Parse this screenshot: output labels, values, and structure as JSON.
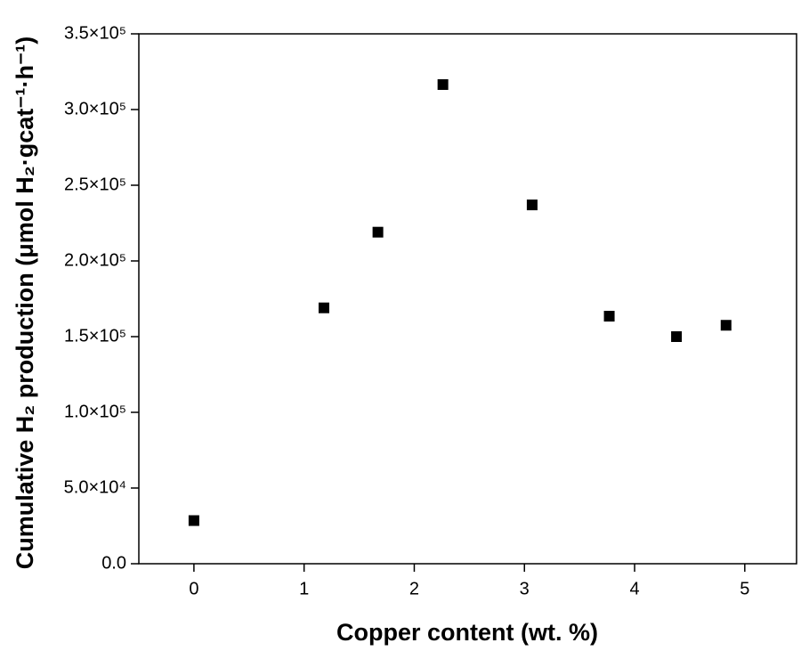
{
  "chart_data": {
    "type": "scatter",
    "x_label": "Copper content (wt. %)",
    "y_label": "Cumulative H₂ production (μmol H₂·gcat⁻¹·h⁻¹)",
    "x": [
      0,
      1.18,
      1.67,
      2.26,
      3.07,
      3.77,
      4.38,
      4.83
    ],
    "values": [
      28500,
      169000,
      219000,
      316500,
      237000,
      163500,
      150000,
      157500
    ],
    "color": "#000000",
    "xlim": [
      -0.5,
      5.47
    ],
    "xticks": [
      0,
      1,
      2,
      3,
      4,
      5
    ],
    "ylim": [
      0,
      350000
    ],
    "yticks": [
      {
        "value": 0,
        "label": "0.0"
      },
      {
        "value": 50000,
        "label": "5.0×10⁴"
      },
      {
        "value": 100000,
        "label": "1.0×10⁵"
      },
      {
        "value": 150000,
        "label": "1.5×10⁵"
      },
      {
        "value": 200000,
        "label": "2.0×10⁵"
      },
      {
        "value": 250000,
        "label": "2.5×10⁵"
      },
      {
        "value": 300000,
        "label": "3.0×10⁵"
      },
      {
        "value": 350000,
        "label": "3.5×10⁵"
      }
    ]
  }
}
